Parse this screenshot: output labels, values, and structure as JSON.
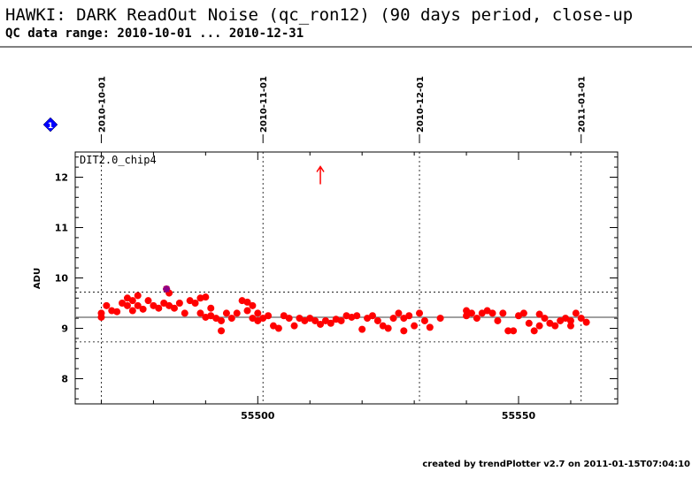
{
  "header": {
    "title": "HAWKI: DARK ReadOut Noise (qc_ron12) (90 days period, close-up",
    "subtitle": "QC data range: 2010-10-01 ... 2010-12-31"
  },
  "footer": {
    "text": "created by trendPlotter v2.7 on 2011-01-15T07:04:10"
  },
  "colors": {
    "points": "#ff0000",
    "marker_diamond": "#0000ff",
    "marker_star": "#8b008b",
    "reference_line": "#808080"
  },
  "chart_data": {
    "type": "scatter",
    "panel_label": "DIT2.0_chip4",
    "ylabel": "ADU",
    "xlim": [
      55465,
      55569
    ],
    "ylim": [
      7.5,
      12.5
    ],
    "x_ticks": [
      55500,
      55550
    ],
    "y_ticks": [
      8,
      9,
      10,
      11,
      12
    ],
    "date_markers": [
      {
        "label": "2010-10-01",
        "x": 55470
      },
      {
        "label": "2010-11-01",
        "x": 55501
      },
      {
        "label": "2010-12-01",
        "x": 55531
      },
      {
        "label": "2011-01-01",
        "x": 55562
      }
    ],
    "reference_line": 9.22,
    "threshold_lines": [
      9.72,
      8.73
    ],
    "grid": false,
    "out_of_range_marker": {
      "x": 55512,
      "y": 12.0,
      "direction": "up"
    },
    "highlighted_point": {
      "x": 55482.5,
      "y": 9.78
    },
    "diamond_marker_label": "1",
    "points": [
      [
        55470,
        9.3
      ],
      [
        55470,
        9.22
      ],
      [
        55471,
        9.45
      ],
      [
        55472,
        9.35
      ],
      [
        55473,
        9.33
      ],
      [
        55474,
        9.5
      ],
      [
        55475,
        9.45
      ],
      [
        55475,
        9.6
      ],
      [
        55476,
        9.35
      ],
      [
        55476,
        9.55
      ],
      [
        55477,
        9.45
      ],
      [
        55477,
        9.65
      ],
      [
        55478,
        9.38
      ],
      [
        55479,
        9.55
      ],
      [
        55480,
        9.45
      ],
      [
        55481,
        9.4
      ],
      [
        55482,
        9.5
      ],
      [
        55483,
        9.45
      ],
      [
        55483,
        9.7
      ],
      [
        55484,
        9.4
      ],
      [
        55485,
        9.5
      ],
      [
        55486,
        9.3
      ],
      [
        55487,
        9.55
      ],
      [
        55488,
        9.5
      ],
      [
        55489,
        9.6
      ],
      [
        55489,
        9.3
      ],
      [
        55490,
        9.62
      ],
      [
        55490,
        9.22
      ],
      [
        55491,
        9.4
      ],
      [
        55491,
        9.25
      ],
      [
        55492,
        9.2
      ],
      [
        55493,
        9.15
      ],
      [
        55493,
        8.95
      ],
      [
        55494,
        9.3
      ],
      [
        55495,
        9.2
      ],
      [
        55496,
        9.3
      ],
      [
        55497,
        9.55
      ],
      [
        55498,
        9.52
      ],
      [
        55498,
        9.35
      ],
      [
        55499,
        9.45
      ],
      [
        55499,
        9.2
      ],
      [
        55500,
        9.3
      ],
      [
        55500,
        9.15
      ],
      [
        55501,
        9.2
      ],
      [
        55502,
        9.25
      ],
      [
        55503,
        9.05
      ],
      [
        55504,
        9.0
      ],
      [
        55505,
        9.25
      ],
      [
        55506,
        9.2
      ],
      [
        55507,
        9.05
      ],
      [
        55508,
        9.2
      ],
      [
        55509,
        9.15
      ],
      [
        55510,
        9.2
      ],
      [
        55511,
        9.15
      ],
      [
        55512,
        9.08
      ],
      [
        55513,
        9.15
      ],
      [
        55514,
        9.1
      ],
      [
        55515,
        9.18
      ],
      [
        55516,
        9.15
      ],
      [
        55517,
        9.25
      ],
      [
        55518,
        9.22
      ],
      [
        55519,
        9.25
      ],
      [
        55520,
        8.98
      ],
      [
        55521,
        9.2
      ],
      [
        55522,
        9.25
      ],
      [
        55523,
        9.15
      ],
      [
        55524,
        9.05
      ],
      [
        55525,
        9.0
      ],
      [
        55526,
        9.2
      ],
      [
        55527,
        9.3
      ],
      [
        55528,
        9.2
      ],
      [
        55528,
        8.95
      ],
      [
        55529,
        9.25
      ],
      [
        55530,
        9.05
      ],
      [
        55531,
        9.3
      ],
      [
        55532,
        9.15
      ],
      [
        55533,
        9.02
      ],
      [
        55535,
        9.2
      ],
      [
        55540,
        9.35
      ],
      [
        55540,
        9.25
      ],
      [
        55541,
        9.3
      ],
      [
        55542,
        9.2
      ],
      [
        55543,
        9.3
      ],
      [
        55544,
        9.35
      ],
      [
        55545,
        9.3
      ],
      [
        55546,
        9.15
      ],
      [
        55547,
        9.3
      ],
      [
        55548,
        8.95
      ],
      [
        55549,
        8.95
      ],
      [
        55550,
        9.25
      ],
      [
        55551,
        9.3
      ],
      [
        55552,
        9.1
      ],
      [
        55553,
        8.95
      ],
      [
        55554,
        9.28
      ],
      [
        55554,
        9.05
      ],
      [
        55555,
        9.2
      ],
      [
        55556,
        9.1
      ],
      [
        55557,
        9.05
      ],
      [
        55558,
        9.15
      ],
      [
        55559,
        9.2
      ],
      [
        55560,
        9.15
      ],
      [
        55560,
        9.05
      ],
      [
        55561,
        9.3
      ],
      [
        55562,
        9.2
      ],
      [
        55563,
        9.12
      ]
    ]
  }
}
